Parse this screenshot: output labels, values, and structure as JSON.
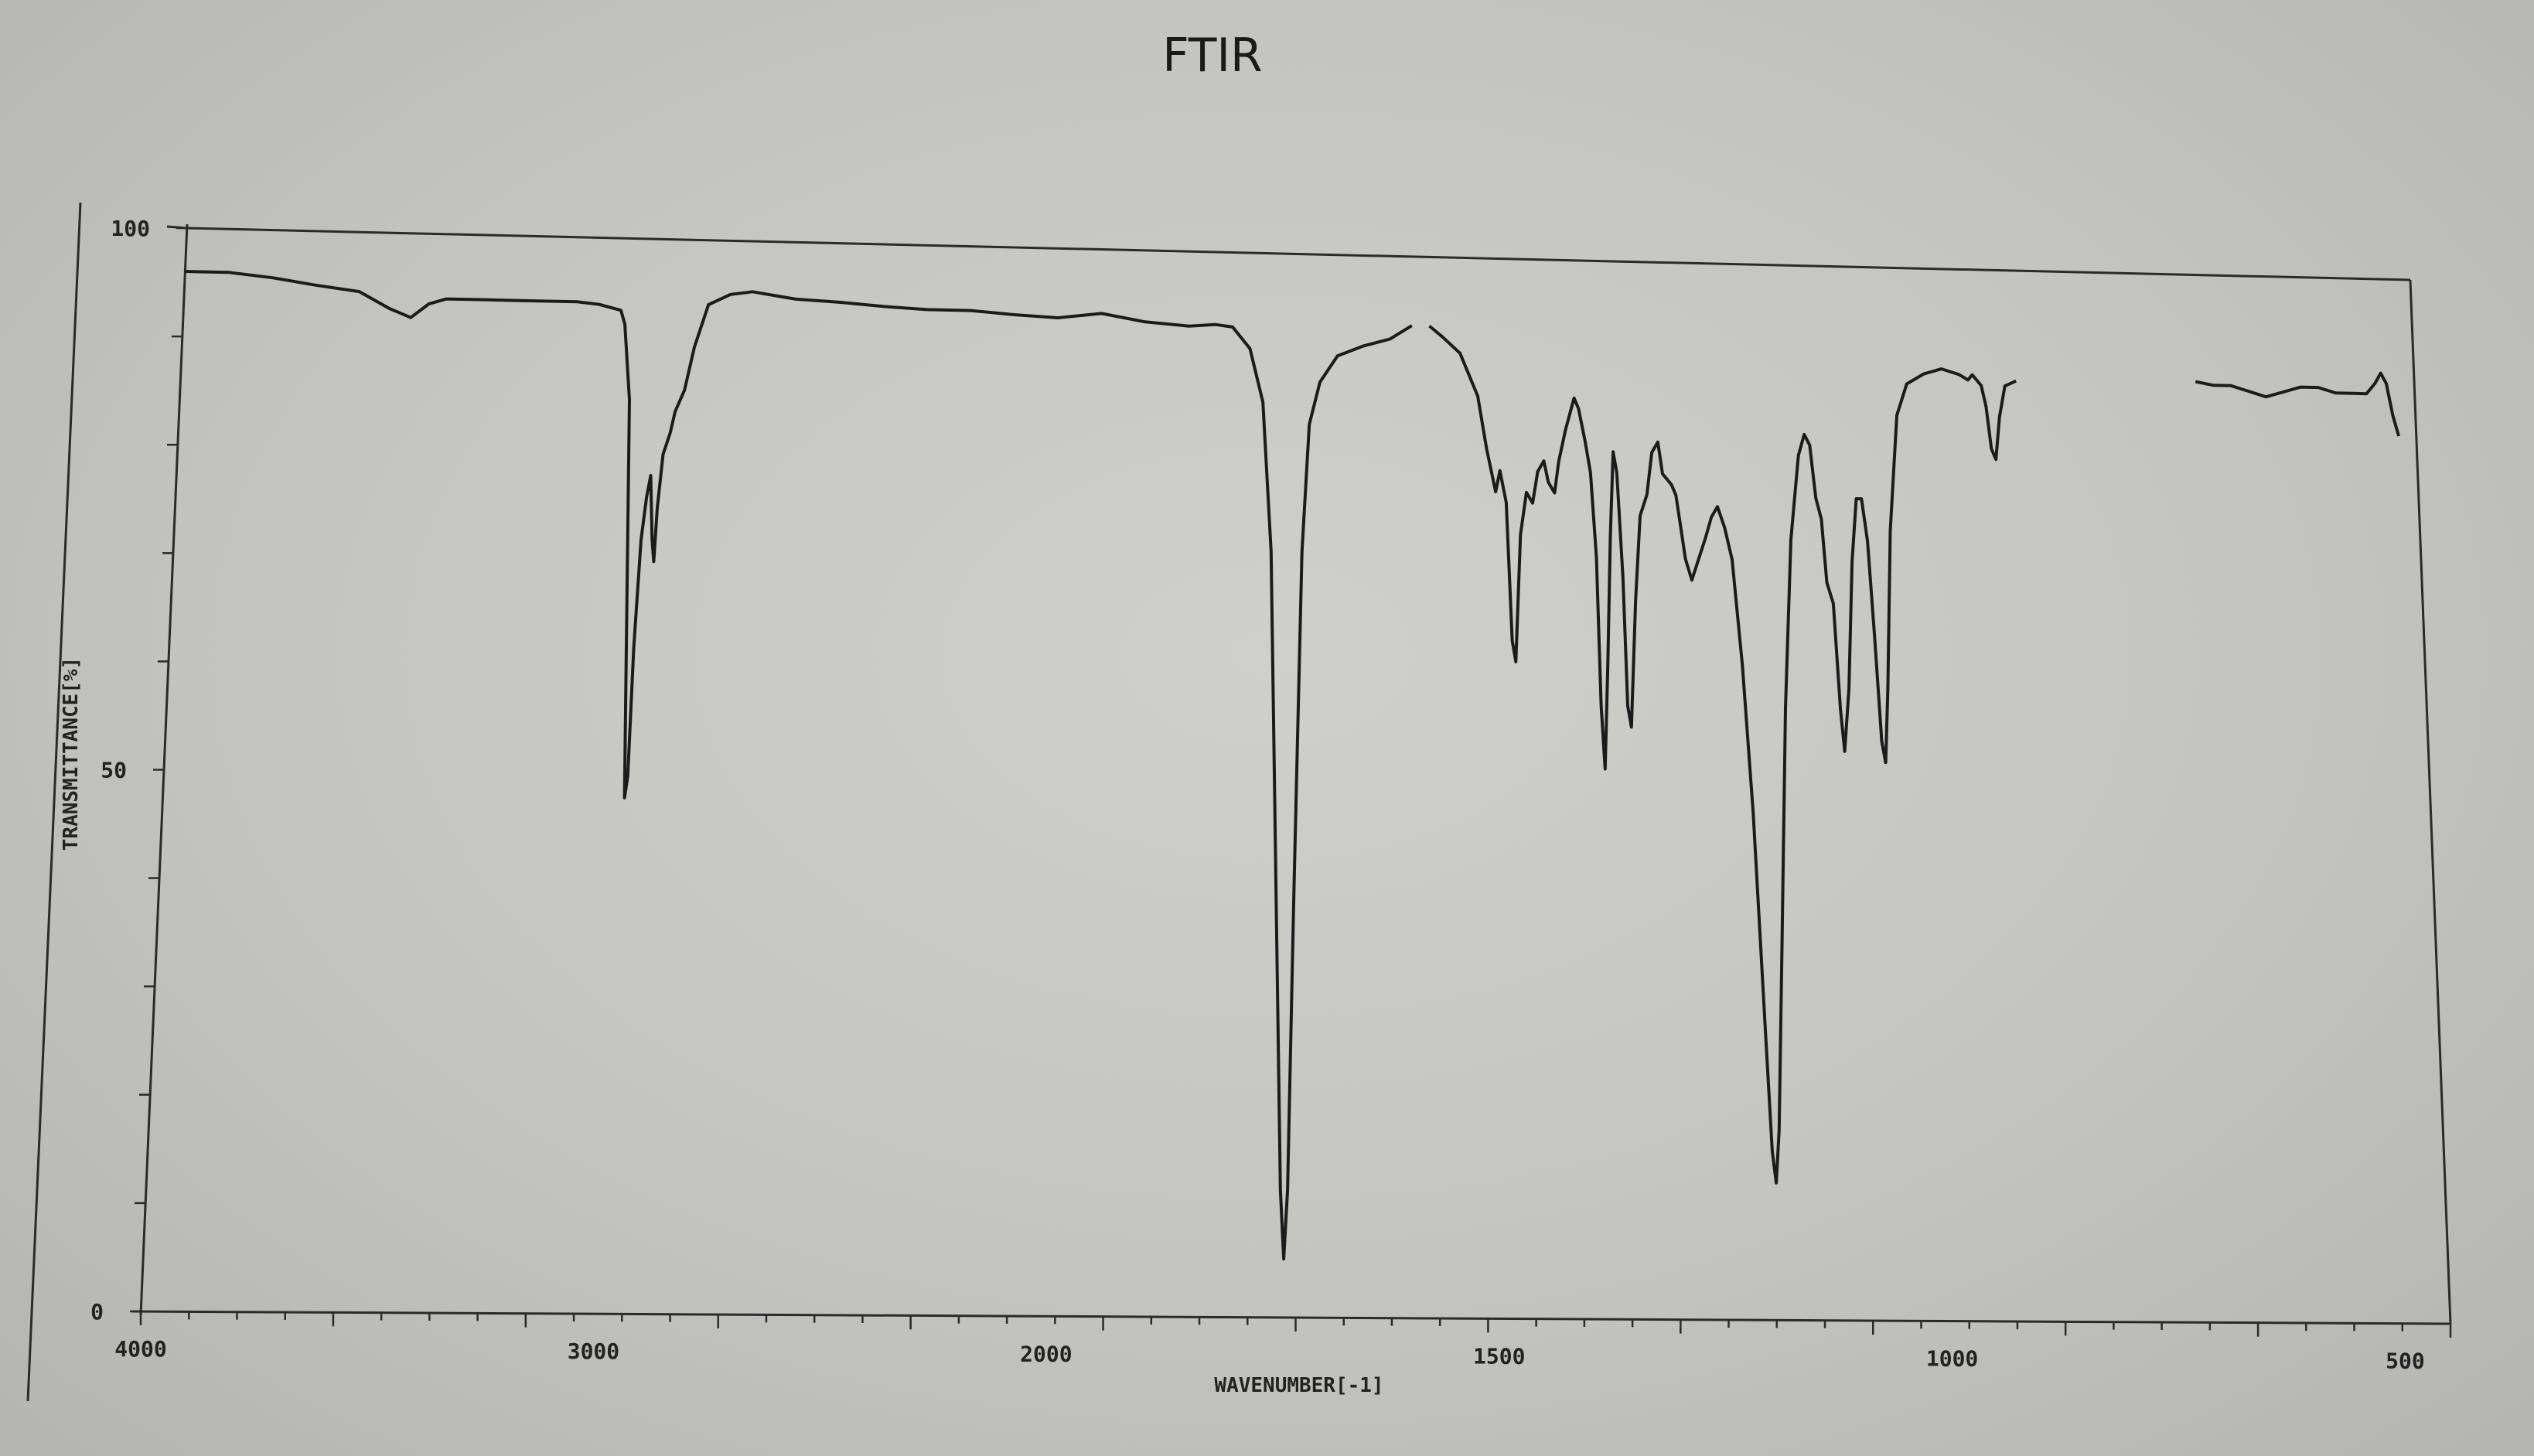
{
  "chart_data": {
    "type": "line",
    "title": "FTIR",
    "xlabel": "WAVENUMBER[-1]",
    "ylabel": "TRANSMITTANCE[%]",
    "x_reversed": true,
    "xlim": [
      4000,
      450
    ],
    "ylim": [
      0,
      100
    ],
    "xticks": [
      "4000",
      "3000",
      "2000",
      "1500",
      "1000",
      "500"
    ],
    "yticks": [
      "100",
      "50",
      "0"
    ],
    "grid": false,
    "series": [
      {
        "color": "#1b1b1b",
        "segments": [
          [
            [
              4000,
              96
            ],
            [
              3900,
              96
            ],
            [
              3800,
              95.6
            ],
            [
              3700,
              95
            ],
            [
              3600,
              94.5
            ],
            [
              3530,
              93
            ],
            [
              3480,
              92.2
            ],
            [
              3440,
              93.5
            ],
            [
              3400,
              94
            ],
            [
              3300,
              94
            ],
            [
              3200,
              94
            ],
            [
              3100,
              94
            ],
            [
              3050,
              93.8
            ],
            [
              3000,
              93.3
            ],
            [
              2990,
              92
            ],
            [
              2975,
              85
            ],
            [
              2968,
              65
            ],
            [
              2962,
              48
            ],
            [
              2956,
              50
            ],
            [
              2950,
              62
            ],
            [
              2940,
              72
            ],
            [
              2930,
              76
            ],
            [
              2922,
              78
            ],
            [
              2915,
              72
            ],
            [
              2910,
              70
            ],
            [
              2905,
              75
            ],
            [
              2895,
              80
            ],
            [
              2880,
              82
            ],
            [
              2870,
              84
            ],
            [
              2850,
              86
            ],
            [
              2830,
              90
            ],
            [
              2800,
              94
            ],
            [
              2750,
              95
            ],
            [
              2700,
              95.3
            ],
            [
              2600,
              94.7
            ],
            [
              2500,
              94.5
            ],
            [
              2400,
              94.2
            ],
            [
              2300,
              94
            ],
            [
              2200,
              94
            ],
            [
              2100,
              93.7
            ],
            [
              2000,
              93.5
            ],
            [
              1950,
              94
            ],
            [
              1900,
              93.3
            ],
            [
              1850,
              93
            ],
            [
              1820,
              93.2
            ],
            [
              1800,
              93
            ],
            [
              1780,
              91
            ],
            [
              1765,
              86
            ],
            [
              1755,
              72
            ],
            [
              1748,
              40
            ],
            [
              1742,
              12
            ],
            [
              1738,
              5.5
            ],
            [
              1734,
              12
            ],
            [
              1728,
              40
            ],
            [
              1720,
              72
            ],
            [
              1712,
              84
            ],
            [
              1700,
              88
            ],
            [
              1680,
              90.5
            ],
            [
              1650,
              91.5
            ],
            [
              1620,
              92.2
            ],
            [
              1595,
              93.5
            ]
          ],
          [
            [
              1575,
              93.5
            ],
            [
              1560,
              92.5
            ],
            [
              1540,
              91
            ],
            [
              1520,
              87
            ],
            [
              1510,
              82
            ],
            [
              1500,
              78
            ],
            [
              1495,
              80
            ],
            [
              1488,
              77
            ],
            [
              1482,
              64
            ],
            [
              1478,
              62
            ],
            [
              1472,
              74
            ],
            [
              1465,
              78
            ],
            [
              1458,
              77
            ],
            [
              1452,
              80
            ],
            [
              1445,
              81
            ],
            [
              1440,
              79
            ],
            [
              1433,
              78
            ],
            [
              1428,
              81
            ],
            [
              1420,
              84
            ],
            [
              1410,
              87
            ],
            [
              1405,
              86
            ],
            [
              1398,
              83
            ],
            [
              1392,
              80
            ],
            [
              1386,
              72
            ],
            [
              1382,
              58
            ],
            [
              1378,
              52
            ],
            [
              1374,
              62
            ],
            [
              1370,
              74
            ],
            [
              1366,
              82
            ],
            [
              1362,
              80
            ],
            [
              1356,
              70
            ],
            [
              1352,
              58
            ],
            [
              1348,
              56
            ],
            [
              1342,
              68
            ],
            [
              1336,
              76
            ],
            [
              1328,
              78
            ],
            [
              1322,
              82
            ],
            [
              1315,
              83
            ],
            [
              1310,
              80
            ],
            [
              1300,
              79
            ],
            [
              1295,
              78
            ],
            [
              1290,
              75
            ],
            [
              1285,
              72
            ],
            [
              1278,
              70
            ],
            [
              1270,
              72
            ],
            [
              1262,
              74
            ],
            [
              1255,
              76
            ],
            [
              1248,
              77
            ],
            [
              1240,
              75
            ],
            [
              1232,
              72
            ],
            [
              1222,
              62
            ],
            [
              1212,
              48
            ],
            [
              1202,
              28
            ],
            [
              1196,
              16
            ],
            [
              1192,
              13
            ],
            [
              1188,
              18
            ],
            [
              1182,
              35
            ],
            [
              1174,
              58
            ],
            [
              1165,
              74
            ],
            [
              1155,
              82
            ],
            [
              1148,
              84
            ],
            [
              1142,
              83
            ],
            [
              1136,
              78
            ],
            [
              1130,
              76
            ],
            [
              1125,
              70
            ],
            [
              1118,
              68
            ],
            [
              1112,
              58
            ],
            [
              1108,
              54
            ],
            [
              1102,
              60
            ],
            [
              1096,
              72
            ],
            [
              1090,
              78
            ],
            [
              1084,
              78
            ],
            [
              1078,
              74
            ],
            [
              1072,
              65
            ],
            [
              1066,
              55
            ],
            [
              1062,
              53
            ],
            [
              1058,
              60
            ],
            [
              1052,
              75
            ],
            [
              1042,
              86
            ],
            [
              1030,
              89
            ],
            [
              1010,
              90
            ],
            [
              990,
              90.5
            ],
            [
              970,
              90
            ],
            [
              960,
              89.5
            ],
            [
              955,
              90
            ],
            [
              945,
              89
            ],
            [
              940,
              87
            ],
            [
              935,
              83
            ],
            [
              930,
              82
            ],
            [
              925,
              86
            ],
            [
              918,
              89
            ],
            [
              905,
              89.5
            ]
          ]
        ],
        "segment2": [
          [
            700,
            89.8
          ],
          [
            680,
            89.5
          ],
          [
            660,
            89.5
          ],
          [
            640,
            89
          ],
          [
            620,
            88.5
          ],
          [
            600,
            89
          ],
          [
            580,
            89.5
          ],
          [
            560,
            89.5
          ],
          [
            540,
            89
          ],
          [
            520,
            89
          ],
          [
            505,
            89
          ],
          [
            495,
            90
          ],
          [
            488,
            91
          ],
          [
            482,
            90
          ],
          [
            476,
            87
          ],
          [
            470,
            85
          ]
        ]
      }
    ]
  }
}
